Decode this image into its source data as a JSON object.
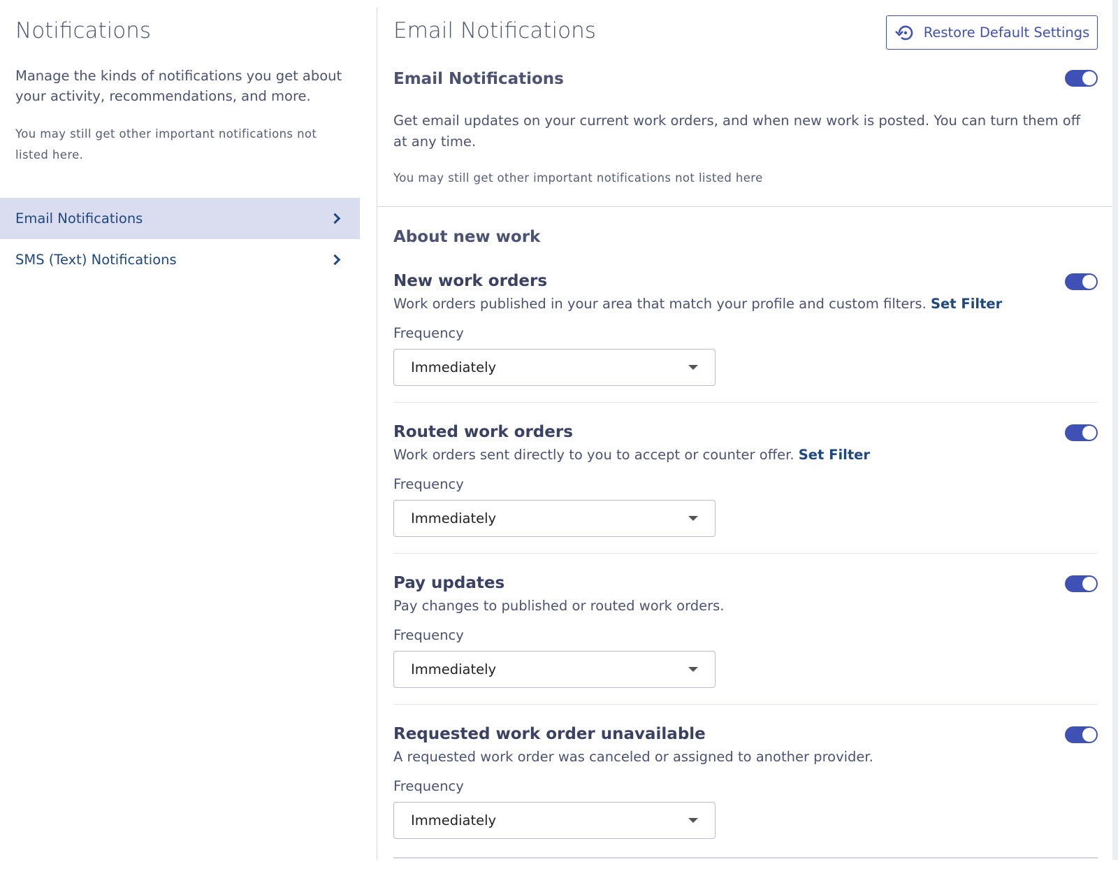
{
  "sidebar": {
    "title": "Notifications",
    "description": "Manage the kinds of notifications you get about your activity, recommendations, and more.",
    "note": "You may still get other important notifications not listed here.",
    "items": [
      {
        "label": "Email Notifications",
        "active": true
      },
      {
        "label": "SMS (Text) Notifications",
        "active": false
      }
    ]
  },
  "main": {
    "title": "Email Notifications",
    "restore_label": "Restore Default Settings",
    "section": {
      "title": "Email Notifications",
      "enabled": true,
      "description": "Get email updates on your current work orders, and when new work is posted. You can turn them off at any time.",
      "note": "You may still get other important notifications not listed here"
    },
    "group_title": "About new work",
    "items": [
      {
        "title": "New work orders",
        "enabled": true,
        "description": "Work orders published in your area that match your profile and custom filters.",
        "link": "Set Filter",
        "frequency_label": "Frequency",
        "frequency": "Immediately"
      },
      {
        "title": "Routed work orders",
        "enabled": true,
        "description": "Work orders sent directly to you to accept or counter offer.",
        "link": "Set Filter",
        "frequency_label": "Frequency",
        "frequency": "Immediately"
      },
      {
        "title": "Pay updates",
        "enabled": true,
        "description": "Pay changes to published or routed work orders.",
        "frequency_label": "Frequency",
        "frequency": "Immediately"
      },
      {
        "title": "Requested work order unavailable",
        "enabled": true,
        "description": "A requested work order was canceled or assigned to another provider.",
        "frequency_label": "Frequency",
        "frequency": "Immediately"
      }
    ]
  },
  "colors": {
    "accent": "#3f51b5",
    "link": "#1f4780",
    "active_nav_bg": "#dadcf0",
    "text": "#4b5272"
  }
}
